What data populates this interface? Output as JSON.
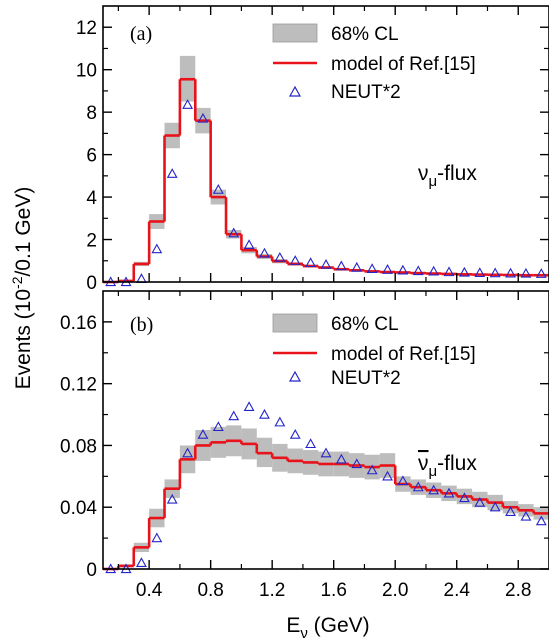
{
  "ylabel": "Events (10<sup>-2</sup>/0.1 GeV)",
  "ylabel_text": "Events (10-2/0.1 GeV)",
  "xlabel": "Eν  (GeV)",
  "chart_data": [
    {
      "type": "line",
      "panel_label": "(a)",
      "flux_label": "νμ-flux",
      "xlim": [
        0.1,
        3.0
      ],
      "ylim": [
        0,
        13
      ],
      "yticks": [
        0,
        2,
        4,
        6,
        8,
        10,
        12
      ],
      "ytick_labels": [
        "0",
        "2",
        "4",
        "6",
        "8",
        "10",
        "12"
      ],
      "legend": {
        "band": "68% CL",
        "model": "model of Ref.[15]",
        "neut": "NEUT*2",
        "position": "top-center"
      },
      "bins": [
        [
          0.1,
          0.2
        ],
        [
          0.2,
          0.3
        ],
        [
          0.3,
          0.4
        ],
        [
          0.4,
          0.5
        ],
        [
          0.5,
          0.6
        ],
        [
          0.6,
          0.7
        ],
        [
          0.7,
          0.8
        ],
        [
          0.8,
          0.9
        ],
        [
          0.9,
          1.0
        ],
        [
          1.0,
          1.1
        ],
        [
          1.1,
          1.2
        ],
        [
          1.2,
          1.3
        ],
        [
          1.3,
          1.4
        ],
        [
          1.4,
          1.5
        ],
        [
          1.5,
          1.6
        ],
        [
          1.6,
          1.7
        ],
        [
          1.7,
          1.8
        ],
        [
          1.8,
          1.9
        ],
        [
          1.9,
          2.0
        ],
        [
          2.0,
          2.1
        ],
        [
          2.1,
          2.2
        ],
        [
          2.2,
          2.3
        ],
        [
          2.3,
          2.4
        ],
        [
          2.4,
          2.5
        ],
        [
          2.5,
          2.6
        ],
        [
          2.6,
          2.7
        ],
        [
          2.7,
          2.8
        ],
        [
          2.8,
          2.9
        ],
        [
          2.9,
          3.0
        ]
      ],
      "series": [
        {
          "name": "model of Ref.[15]",
          "color": "#e8131a",
          "values": [
            0.0,
            0.05,
            0.85,
            2.85,
            6.9,
            9.55,
            7.6,
            4.0,
            2.25,
            1.5,
            1.2,
            0.98,
            0.85,
            0.75,
            0.68,
            0.6,
            0.55,
            0.5,
            0.47,
            0.45,
            0.42,
            0.4,
            0.38,
            0.36,
            0.35,
            0.34,
            0.33,
            0.32,
            0.32
          ]
        },
        {
          "name": "68% CL",
          "color": "#bdbdbd",
          "lower": [
            0.0,
            0.03,
            0.75,
            2.5,
            6.3,
            8.5,
            7.0,
            3.65,
            2.05,
            1.35,
            1.08,
            0.88,
            0.77,
            0.68,
            0.62,
            0.54,
            0.5,
            0.45,
            0.43,
            0.41,
            0.38,
            0.36,
            0.34,
            0.33,
            0.32,
            0.31,
            0.3,
            0.29,
            0.29
          ],
          "upper": [
            0.0,
            0.08,
            0.95,
            3.2,
            7.5,
            10.65,
            8.2,
            4.35,
            2.45,
            1.65,
            1.32,
            1.08,
            0.93,
            0.82,
            0.74,
            0.66,
            0.6,
            0.55,
            0.51,
            0.49,
            0.46,
            0.44,
            0.42,
            0.39,
            0.38,
            0.37,
            0.36,
            0.35,
            0.35
          ]
        },
        {
          "name": "NEUT*2",
          "color": "#2424c8",
          "x": [
            0.15,
            0.25,
            0.35,
            0.45,
            0.55,
            0.65,
            0.75,
            0.85,
            0.95,
            1.05,
            1.15,
            1.25,
            1.35,
            1.45,
            1.55,
            1.65,
            1.75,
            1.85,
            1.95,
            2.05,
            2.15,
            2.25,
            2.35,
            2.45,
            2.55,
            2.65,
            2.75,
            2.85,
            2.95
          ],
          "y": [
            0.0,
            0.0,
            0.15,
            1.55,
            5.1,
            8.35,
            7.7,
            4.35,
            2.3,
            1.75,
            1.35,
            1.15,
            1.0,
            0.9,
            0.82,
            0.75,
            0.68,
            0.62,
            0.58,
            0.55,
            0.52,
            0.5,
            0.47,
            0.45,
            0.43,
            0.42,
            0.41,
            0.4,
            0.39
          ]
        }
      ]
    },
    {
      "type": "line",
      "panel_label": "(b)",
      "flux_label": "ν̄μ-flux",
      "xlim": [
        0.1,
        3.0
      ],
      "ylim": [
        0,
        0.18
      ],
      "xticks": [
        0.4,
        0.8,
        1.2,
        1.6,
        2.0,
        2.4,
        2.8
      ],
      "xtick_labels": [
        "0.4",
        "0.8",
        "1.2",
        "1.6",
        "2.0",
        "2.4",
        "2.8"
      ],
      "yticks": [
        0,
        0.04,
        0.08,
        0.12,
        0.16
      ],
      "ytick_labels": [
        "0",
        "0.04",
        "0.08",
        "0.12",
        "0.16"
      ],
      "legend": {
        "band": "68% CL",
        "model": "model of Ref.[15]",
        "neut": "NEUT*2",
        "position": "top-center"
      },
      "bins": [
        [
          0.1,
          0.2
        ],
        [
          0.2,
          0.3
        ],
        [
          0.3,
          0.4
        ],
        [
          0.4,
          0.5
        ],
        [
          0.5,
          0.6
        ],
        [
          0.6,
          0.7
        ],
        [
          0.7,
          0.8
        ],
        [
          0.8,
          0.9
        ],
        [
          0.9,
          1.0
        ],
        [
          1.0,
          1.1
        ],
        [
          1.1,
          1.2
        ],
        [
          1.2,
          1.3
        ],
        [
          1.3,
          1.4
        ],
        [
          1.4,
          1.5
        ],
        [
          1.5,
          1.6
        ],
        [
          1.6,
          1.7
        ],
        [
          1.7,
          1.8
        ],
        [
          1.8,
          1.9
        ],
        [
          1.9,
          2.0
        ],
        [
          2.0,
          2.1
        ],
        [
          2.1,
          2.2
        ],
        [
          2.2,
          2.3
        ],
        [
          2.3,
          2.4
        ],
        [
          2.4,
          2.5
        ],
        [
          2.5,
          2.6
        ],
        [
          2.6,
          2.7
        ],
        [
          2.7,
          2.8
        ],
        [
          2.8,
          2.9
        ],
        [
          2.9,
          3.0
        ]
      ],
      "series": [
        {
          "name": "model of Ref.[15]",
          "color": "#e8131a",
          "values": [
            0.0,
            0.002,
            0.014,
            0.033,
            0.052,
            0.071,
            0.08,
            0.082,
            0.083,
            0.081,
            0.075,
            0.072,
            0.07,
            0.069,
            0.068,
            0.068,
            0.067,
            0.066,
            0.067,
            0.055,
            0.053,
            0.051,
            0.049,
            0.047,
            0.045,
            0.043,
            0.04,
            0.038,
            0.036
          ]
        },
        {
          "name": "68% CL",
          "color": "#bdbdbd",
          "lower": [
            0.0,
            0.001,
            0.011,
            0.027,
            0.046,
            0.062,
            0.07,
            0.072,
            0.073,
            0.071,
            0.066,
            0.063,
            0.062,
            0.061,
            0.06,
            0.06,
            0.059,
            0.058,
            0.059,
            0.05,
            0.048,
            0.046,
            0.044,
            0.042,
            0.04,
            0.038,
            0.036,
            0.034,
            0.032
          ],
          "upper": [
            0.0,
            0.003,
            0.017,
            0.039,
            0.058,
            0.08,
            0.09,
            0.092,
            0.093,
            0.091,
            0.085,
            0.081,
            0.078,
            0.077,
            0.076,
            0.076,
            0.075,
            0.074,
            0.075,
            0.06,
            0.058,
            0.056,
            0.054,
            0.052,
            0.05,
            0.048,
            0.044,
            0.042,
            0.04
          ]
        },
        {
          "name": "NEUT*2",
          "color": "#2424c8",
          "x": [
            0.15,
            0.25,
            0.35,
            0.45,
            0.55,
            0.65,
            0.75,
            0.85,
            0.95,
            1.05,
            1.15,
            1.25,
            1.35,
            1.45,
            1.55,
            1.65,
            1.75,
            1.85,
            1.95,
            2.05,
            2.15,
            2.25,
            2.35,
            2.45,
            2.55,
            2.65,
            2.75,
            2.85,
            2.95
          ],
          "y": [
            0.0,
            0.0,
            0.004,
            0.02,
            0.045,
            0.075,
            0.087,
            0.092,
            0.099,
            0.105,
            0.1,
            0.095,
            0.087,
            0.081,
            0.075,
            0.071,
            0.068,
            0.064,
            0.06,
            0.057,
            0.053,
            0.051,
            0.049,
            0.046,
            0.043,
            0.04,
            0.037,
            0.034,
            0.031
          ]
        }
      ]
    }
  ]
}
